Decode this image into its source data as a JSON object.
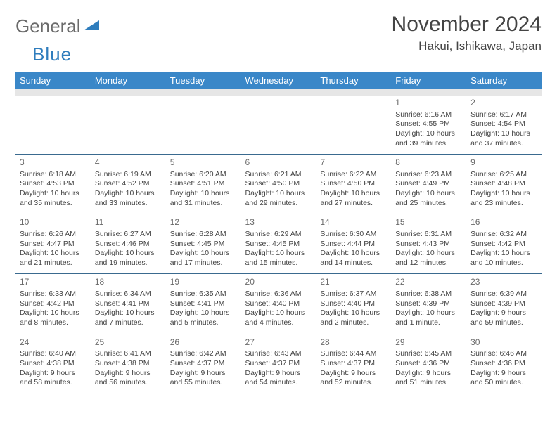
{
  "logo": {
    "text1": "General",
    "text2": "Blue"
  },
  "title": "November 2024",
  "location": "Hakui, Ishikawa, Japan",
  "colors": {
    "header_bg": "#3a87c8",
    "header_text": "#ffffff",
    "sep_line": "#3a6a8f",
    "gray_band": "#e6e6e6",
    "body_text": "#444444",
    "logo_gray": "#6b6b6b",
    "logo_blue": "#2f7dbd"
  },
  "day_headers": [
    "Sunday",
    "Monday",
    "Tuesday",
    "Wednesday",
    "Thursday",
    "Friday",
    "Saturday"
  ],
  "weeks": [
    [
      {
        "n": "",
        "sr": "",
        "ss": "",
        "dl": ""
      },
      {
        "n": "",
        "sr": "",
        "ss": "",
        "dl": ""
      },
      {
        "n": "",
        "sr": "",
        "ss": "",
        "dl": ""
      },
      {
        "n": "",
        "sr": "",
        "ss": "",
        "dl": ""
      },
      {
        "n": "",
        "sr": "",
        "ss": "",
        "dl": ""
      },
      {
        "n": "1",
        "sr": "Sunrise: 6:16 AM",
        "ss": "Sunset: 4:55 PM",
        "dl": "Daylight: 10 hours and 39 minutes."
      },
      {
        "n": "2",
        "sr": "Sunrise: 6:17 AM",
        "ss": "Sunset: 4:54 PM",
        "dl": "Daylight: 10 hours and 37 minutes."
      }
    ],
    [
      {
        "n": "3",
        "sr": "Sunrise: 6:18 AM",
        "ss": "Sunset: 4:53 PM",
        "dl": "Daylight: 10 hours and 35 minutes."
      },
      {
        "n": "4",
        "sr": "Sunrise: 6:19 AM",
        "ss": "Sunset: 4:52 PM",
        "dl": "Daylight: 10 hours and 33 minutes."
      },
      {
        "n": "5",
        "sr": "Sunrise: 6:20 AM",
        "ss": "Sunset: 4:51 PM",
        "dl": "Daylight: 10 hours and 31 minutes."
      },
      {
        "n": "6",
        "sr": "Sunrise: 6:21 AM",
        "ss": "Sunset: 4:50 PM",
        "dl": "Daylight: 10 hours and 29 minutes."
      },
      {
        "n": "7",
        "sr": "Sunrise: 6:22 AM",
        "ss": "Sunset: 4:50 PM",
        "dl": "Daylight: 10 hours and 27 minutes."
      },
      {
        "n": "8",
        "sr": "Sunrise: 6:23 AM",
        "ss": "Sunset: 4:49 PM",
        "dl": "Daylight: 10 hours and 25 minutes."
      },
      {
        "n": "9",
        "sr": "Sunrise: 6:25 AM",
        "ss": "Sunset: 4:48 PM",
        "dl": "Daylight: 10 hours and 23 minutes."
      }
    ],
    [
      {
        "n": "10",
        "sr": "Sunrise: 6:26 AM",
        "ss": "Sunset: 4:47 PM",
        "dl": "Daylight: 10 hours and 21 minutes."
      },
      {
        "n": "11",
        "sr": "Sunrise: 6:27 AM",
        "ss": "Sunset: 4:46 PM",
        "dl": "Daylight: 10 hours and 19 minutes."
      },
      {
        "n": "12",
        "sr": "Sunrise: 6:28 AM",
        "ss": "Sunset: 4:45 PM",
        "dl": "Daylight: 10 hours and 17 minutes."
      },
      {
        "n": "13",
        "sr": "Sunrise: 6:29 AM",
        "ss": "Sunset: 4:45 PM",
        "dl": "Daylight: 10 hours and 15 minutes."
      },
      {
        "n": "14",
        "sr": "Sunrise: 6:30 AM",
        "ss": "Sunset: 4:44 PM",
        "dl": "Daylight: 10 hours and 14 minutes."
      },
      {
        "n": "15",
        "sr": "Sunrise: 6:31 AM",
        "ss": "Sunset: 4:43 PM",
        "dl": "Daylight: 10 hours and 12 minutes."
      },
      {
        "n": "16",
        "sr": "Sunrise: 6:32 AM",
        "ss": "Sunset: 4:42 PM",
        "dl": "Daylight: 10 hours and 10 minutes."
      }
    ],
    [
      {
        "n": "17",
        "sr": "Sunrise: 6:33 AM",
        "ss": "Sunset: 4:42 PM",
        "dl": "Daylight: 10 hours and 8 minutes."
      },
      {
        "n": "18",
        "sr": "Sunrise: 6:34 AM",
        "ss": "Sunset: 4:41 PM",
        "dl": "Daylight: 10 hours and 7 minutes."
      },
      {
        "n": "19",
        "sr": "Sunrise: 6:35 AM",
        "ss": "Sunset: 4:41 PM",
        "dl": "Daylight: 10 hours and 5 minutes."
      },
      {
        "n": "20",
        "sr": "Sunrise: 6:36 AM",
        "ss": "Sunset: 4:40 PM",
        "dl": "Daylight: 10 hours and 4 minutes."
      },
      {
        "n": "21",
        "sr": "Sunrise: 6:37 AM",
        "ss": "Sunset: 4:40 PM",
        "dl": "Daylight: 10 hours and 2 minutes."
      },
      {
        "n": "22",
        "sr": "Sunrise: 6:38 AM",
        "ss": "Sunset: 4:39 PM",
        "dl": "Daylight: 10 hours and 1 minute."
      },
      {
        "n": "23",
        "sr": "Sunrise: 6:39 AM",
        "ss": "Sunset: 4:39 PM",
        "dl": "Daylight: 9 hours and 59 minutes."
      }
    ],
    [
      {
        "n": "24",
        "sr": "Sunrise: 6:40 AM",
        "ss": "Sunset: 4:38 PM",
        "dl": "Daylight: 9 hours and 58 minutes."
      },
      {
        "n": "25",
        "sr": "Sunrise: 6:41 AM",
        "ss": "Sunset: 4:38 PM",
        "dl": "Daylight: 9 hours and 56 minutes."
      },
      {
        "n": "26",
        "sr": "Sunrise: 6:42 AM",
        "ss": "Sunset: 4:37 PM",
        "dl": "Daylight: 9 hours and 55 minutes."
      },
      {
        "n": "27",
        "sr": "Sunrise: 6:43 AM",
        "ss": "Sunset: 4:37 PM",
        "dl": "Daylight: 9 hours and 54 minutes."
      },
      {
        "n": "28",
        "sr": "Sunrise: 6:44 AM",
        "ss": "Sunset: 4:37 PM",
        "dl": "Daylight: 9 hours and 52 minutes."
      },
      {
        "n": "29",
        "sr": "Sunrise: 6:45 AM",
        "ss": "Sunset: 4:36 PM",
        "dl": "Daylight: 9 hours and 51 minutes."
      },
      {
        "n": "30",
        "sr": "Sunrise: 6:46 AM",
        "ss": "Sunset: 4:36 PM",
        "dl": "Daylight: 9 hours and 50 minutes."
      }
    ]
  ]
}
